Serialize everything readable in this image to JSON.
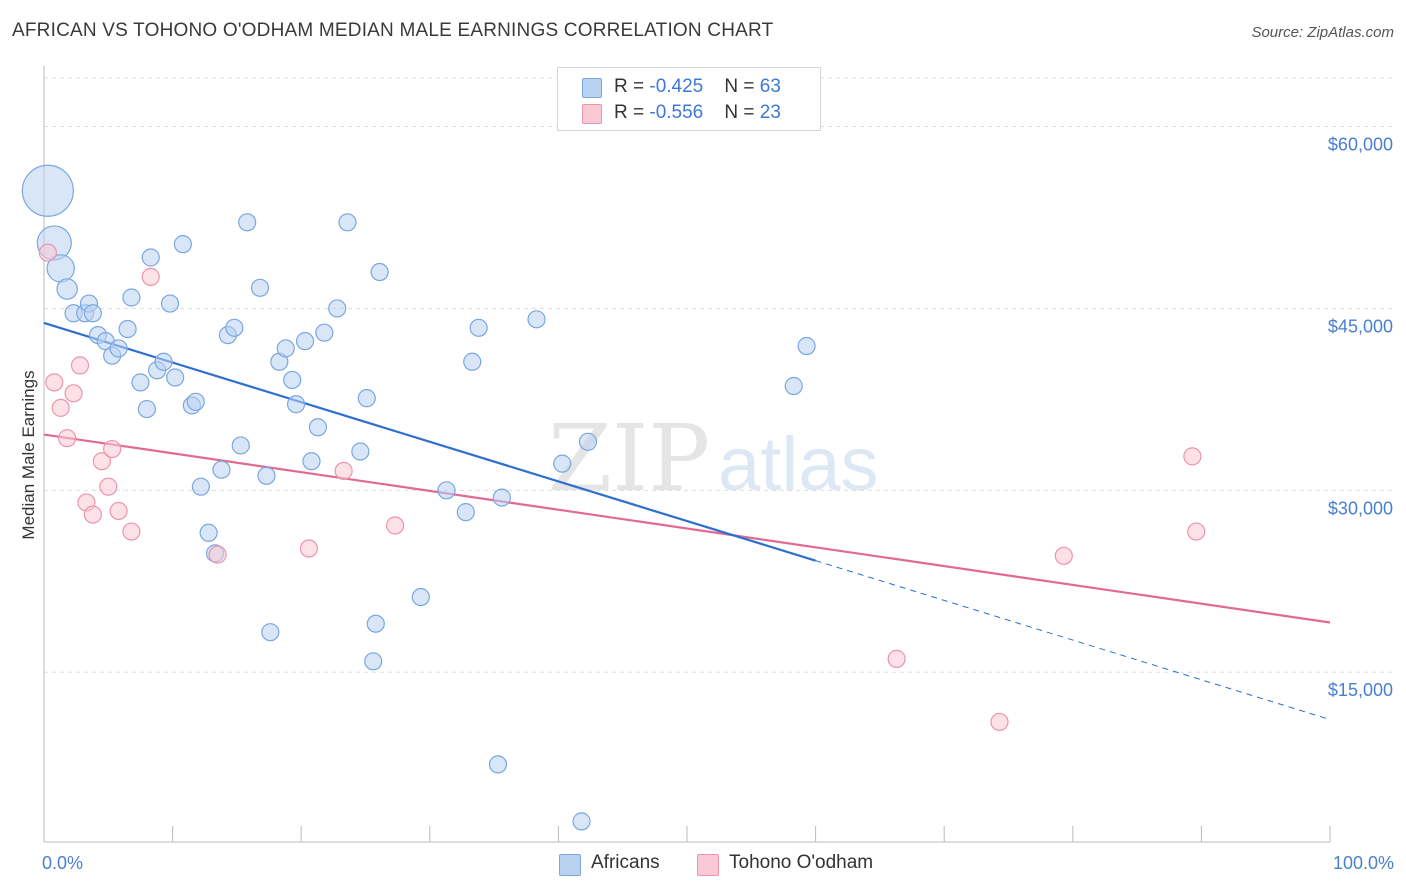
{
  "header": {
    "title": "AFRICAN VS TOHONO O'ODHAM MEDIAN MALE EARNINGS CORRELATION CHART",
    "source": "Source: ZipAtlas.com"
  },
  "legend": {
    "rows": [
      {
        "r_label": "R = ",
        "r_value": "-0.425",
        "n_label": "N = ",
        "n_value": "63"
      },
      {
        "r_label": "R = ",
        "r_value": "-0.556",
        "n_label": "N = ",
        "n_value": "23"
      }
    ],
    "bottom": [
      "Africans",
      "Tohono O'odham"
    ]
  },
  "watermark": {
    "zip": "ZIP",
    "atlas": "atlas"
  },
  "colors": {
    "africans_fill": "#b9d2f2",
    "africans_stroke": "#7aa7e0",
    "africans_line": "#2e6fd0",
    "tohono_fill": "#f9c9d6",
    "tohono_stroke": "#ec94ad",
    "tohono_line": "#e26a92",
    "tick_text": "#4a7fd0",
    "grid": "#dddddd"
  },
  "chart_data": {
    "type": "scatter",
    "title": "AFRICAN VS TOHONO O'ODHAM MEDIAN MALE EARNINGS CORRELATION CHART",
    "xlabel": "",
    "ylabel": "Median Male Earnings",
    "xlim": [
      0,
      100
    ],
    "ylim": [
      1000,
      64000
    ],
    "x_tick_labels": [
      "0.0%",
      "100.0%"
    ],
    "y_ticks": [
      15000,
      30000,
      45000,
      60000
    ],
    "y_tick_labels": [
      "$15,000",
      "$30,000",
      "$45,000",
      "$60,000"
    ],
    "grid": true,
    "legend_position": "top-center",
    "series": [
      {
        "name": "Africans",
        "R": -0.425,
        "N": 63,
        "trend": {
          "x0": 0,
          "y0": 43800,
          "x1": 60,
          "y1": 24200,
          "dash_to_x": 100,
          "dash_to_y": 11100
        },
        "points": [
          [
            0.3,
            54700,
            3
          ],
          [
            0.8,
            50400,
            2
          ],
          [
            1.3,
            48300,
            1.6
          ],
          [
            1.8,
            46600,
            1.2
          ],
          [
            2.3,
            44600,
            1
          ],
          [
            3.2,
            44600,
            1
          ],
          [
            3.5,
            45400,
            1
          ],
          [
            3.8,
            44600,
            1
          ],
          [
            4.2,
            42800,
            1
          ],
          [
            4.8,
            42300,
            1
          ],
          [
            5.3,
            41100,
            1
          ],
          [
            5.8,
            41700,
            1
          ],
          [
            6.5,
            43300,
            1
          ],
          [
            6.8,
            45900,
            1
          ],
          [
            7.5,
            38900,
            1
          ],
          [
            8.0,
            36700,
            1
          ],
          [
            8.3,
            49200,
            1
          ],
          [
            8.8,
            39900,
            1
          ],
          [
            9.3,
            40600,
            1
          ],
          [
            9.8,
            45400,
            1
          ],
          [
            10.2,
            39300,
            1
          ],
          [
            10.8,
            50300,
            1
          ],
          [
            11.5,
            37000,
            1
          ],
          [
            11.8,
            37300,
            1
          ],
          [
            12.2,
            30300,
            1
          ],
          [
            12.8,
            26500,
            1
          ],
          [
            13.3,
            24800,
            1
          ],
          [
            13.8,
            31700,
            1
          ],
          [
            14.3,
            42800,
            1
          ],
          [
            14.8,
            43400,
            1
          ],
          [
            15.3,
            33700,
            1
          ],
          [
            15.8,
            52100,
            1
          ],
          [
            16.8,
            46700,
            1
          ],
          [
            17.3,
            31200,
            1
          ],
          [
            17.6,
            18300,
            1
          ],
          [
            18.3,
            40600,
            1
          ],
          [
            18.8,
            41700,
            1
          ],
          [
            19.3,
            39100,
            1
          ],
          [
            19.6,
            37100,
            1
          ],
          [
            20.3,
            42300,
            1
          ],
          [
            20.8,
            32400,
            1
          ],
          [
            21.3,
            35200,
            1
          ],
          [
            21.8,
            43000,
            1
          ],
          [
            22.8,
            45000,
            1
          ],
          [
            23.6,
            52100,
            1
          ],
          [
            24.6,
            33200,
            1
          ],
          [
            25.1,
            37600,
            1
          ],
          [
            25.6,
            15900,
            1
          ],
          [
            25.8,
            19000,
            1
          ],
          [
            26.1,
            48000,
            1
          ],
          [
            29.3,
            21200,
            1
          ],
          [
            31.3,
            30000,
            1
          ],
          [
            32.8,
            28200,
            1
          ],
          [
            33.3,
            40600,
            1
          ],
          [
            33.8,
            43400,
            1
          ],
          [
            35.3,
            7400,
            1
          ],
          [
            35.6,
            29400,
            1
          ],
          [
            38.3,
            44100,
            1
          ],
          [
            40.3,
            32200,
            1
          ],
          [
            41.8,
            2700,
            1
          ],
          [
            42.3,
            34000,
            1
          ],
          [
            58.3,
            38600,
            1
          ],
          [
            59.3,
            41900,
            1
          ]
        ]
      },
      {
        "name": "Tohono O'odham",
        "R": -0.556,
        "N": 23,
        "trend": {
          "x0": 0,
          "y0": 34600,
          "x1": 100,
          "y1": 19100
        },
        "points": [
          [
            0.3,
            49600,
            1
          ],
          [
            0.8,
            38900,
            1
          ],
          [
            1.3,
            36800,
            1
          ],
          [
            1.8,
            34300,
            1
          ],
          [
            2.3,
            38000,
            1
          ],
          [
            2.8,
            40300,
            1
          ],
          [
            3.3,
            29000,
            1
          ],
          [
            3.8,
            28000,
            1
          ],
          [
            4.5,
            32400,
            1
          ],
          [
            5.0,
            30300,
            1
          ],
          [
            5.3,
            33400,
            1
          ],
          [
            5.8,
            28300,
            1
          ],
          [
            6.8,
            26600,
            1
          ],
          [
            8.3,
            47600,
            1
          ],
          [
            13.5,
            24700,
            1
          ],
          [
            20.6,
            25200,
            1
          ],
          [
            23.3,
            31600,
            1
          ],
          [
            27.3,
            27100,
            1
          ],
          [
            66.3,
            16100,
            1
          ],
          [
            74.3,
            10900,
            1
          ],
          [
            79.3,
            24600,
            1
          ],
          [
            89.3,
            32800,
            1
          ],
          [
            89.6,
            26600,
            1
          ]
        ]
      }
    ]
  }
}
